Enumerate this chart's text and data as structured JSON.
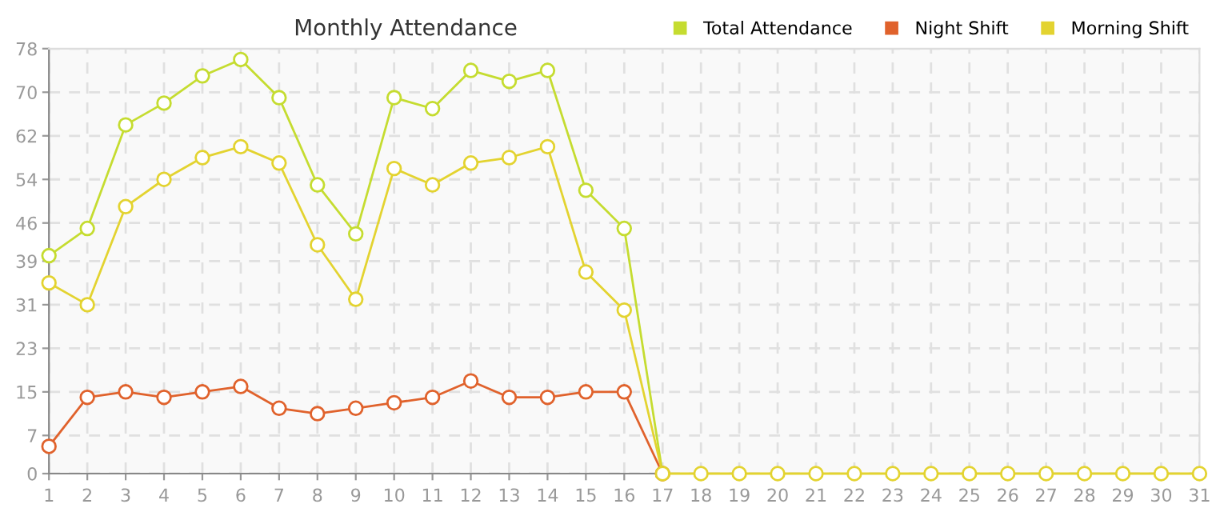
{
  "chart_data": {
    "type": "line",
    "title": "Monthly Attendance",
    "x": [
      1,
      2,
      3,
      4,
      5,
      6,
      7,
      8,
      9,
      10,
      11,
      12,
      13,
      14,
      15,
      16,
      17,
      18,
      19,
      20,
      21,
      22,
      23,
      24,
      25,
      26,
      27,
      28,
      29,
      30,
      31
    ],
    "series": [
      {
        "name": "Total Attendance",
        "color": "#c5dc30",
        "values": [
          40,
          45,
          64,
          68,
          73,
          76,
          69,
          53,
          44,
          69,
          67,
          74,
          72,
          74,
          52,
          45,
          0,
          null,
          null,
          null,
          null,
          null,
          null,
          null,
          null,
          null,
          null,
          null,
          null,
          null,
          null
        ]
      },
      {
        "name": "Night Shift",
        "color": "#e0622c",
        "values": [
          5,
          14,
          15,
          14,
          15,
          16,
          12,
          11,
          12,
          13,
          14,
          17,
          14,
          14,
          15,
          15,
          0,
          null,
          null,
          null,
          null,
          null,
          null,
          null,
          null,
          null,
          null,
          null,
          null,
          null,
          null
        ]
      },
      {
        "name": "Morning Shift",
        "color": "#e3d330",
        "values": [
          35,
          31,
          49,
          54,
          58,
          60,
          57,
          42,
          32,
          56,
          53,
          57,
          58,
          60,
          37,
          30,
          0,
          0,
          0,
          0,
          0,
          0,
          0,
          0,
          0,
          0,
          0,
          0,
          0,
          0,
          0
        ]
      }
    ],
    "xlim": [
      1,
      31
    ],
    "xticks": [
      1,
      2,
      3,
      4,
      5,
      6,
      7,
      8,
      9,
      10,
      11,
      12,
      13,
      14,
      15,
      16,
      17,
      18,
      19,
      20,
      21,
      22,
      23,
      24,
      25,
      26,
      27,
      28,
      29,
      30,
      31
    ],
    "ylim": [
      0,
      78
    ],
    "yticks": [
      0,
      7,
      15,
      23,
      31,
      39,
      46,
      54,
      62,
      70,
      78
    ],
    "grid": true,
    "legend": "top right",
    "marker": "circle",
    "line_style": "solid"
  }
}
